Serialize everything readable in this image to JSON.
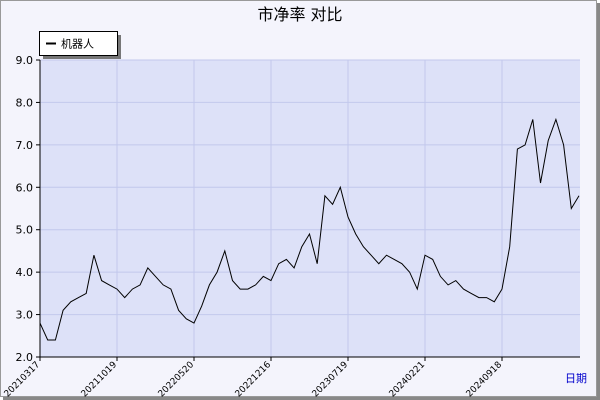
{
  "chart_data": {
    "type": "line",
    "title": "市净率  对比",
    "x_label": "日期",
    "categories": [
      "20210317",
      null,
      null,
      null,
      null,
      null,
      null,
      null,
      null,
      null,
      "20211019",
      null,
      null,
      null,
      null,
      null,
      null,
      null,
      null,
      null,
      "20220520",
      null,
      null,
      null,
      null,
      null,
      null,
      null,
      null,
      null,
      "20221216",
      null,
      null,
      null,
      null,
      null,
      null,
      null,
      null,
      null,
      "20230719",
      null,
      null,
      null,
      null,
      null,
      null,
      null,
      null,
      null,
      "20240221",
      null,
      null,
      null,
      null,
      null,
      null,
      null,
      null,
      null,
      "20240918",
      null,
      null,
      null,
      null,
      null,
      null,
      null,
      null,
      null,
      null
    ],
    "series": [
      {
        "name": "机器人",
        "color": "#000000",
        "values": [
          2.8,
          2.4,
          2.4,
          3.1,
          3.3,
          3.4,
          3.5,
          4.4,
          3.8,
          3.7,
          3.6,
          3.4,
          3.6,
          3.7,
          4.1,
          3.9,
          3.7,
          3.6,
          3.1,
          2.9,
          2.8,
          3.2,
          3.7,
          4.0,
          4.5,
          3.8,
          3.6,
          3.6,
          3.7,
          3.9,
          3.8,
          4.2,
          4.3,
          4.1,
          4.6,
          4.9,
          4.2,
          5.8,
          5.6,
          6.0,
          5.3,
          4.9,
          4.6,
          4.4,
          4.2,
          4.4,
          4.3,
          4.2,
          4.0,
          3.6,
          4.4,
          4.3,
          3.9,
          3.7,
          3.8,
          3.6,
          3.5,
          3.4,
          3.4,
          3.3,
          3.6,
          4.6,
          6.9,
          7.0,
          7.6,
          6.1,
          7.1,
          7.6,
          7.0,
          5.5,
          5.8
        ]
      }
    ],
    "ylim": [
      2,
      9
    ],
    "yticks": [
      {
        "value": 2,
        "label": "2.0"
      },
      {
        "value": 3,
        "label": "3.0"
      },
      {
        "value": 4,
        "label": "4.0"
      },
      {
        "value": 5,
        "label": "5.0"
      },
      {
        "value": 6,
        "label": "6.0"
      },
      {
        "value": 7,
        "label": "7.0"
      },
      {
        "value": 8,
        "label": "8.0"
      },
      {
        "value": 9,
        "label": "9.0"
      }
    ],
    "grid": true
  }
}
